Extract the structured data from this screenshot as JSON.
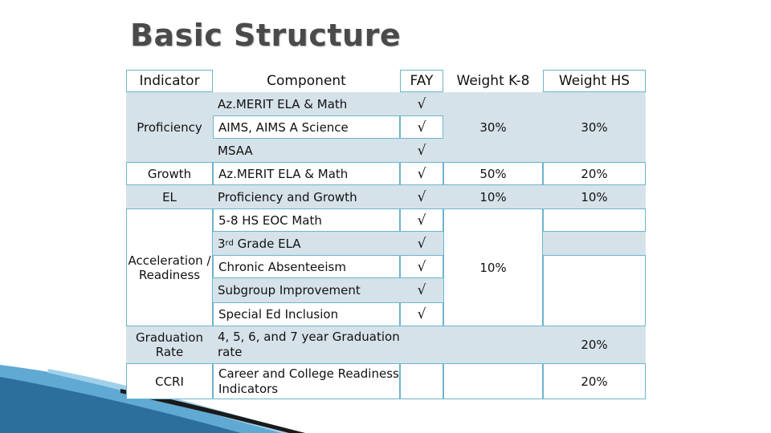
{
  "title": "Basic Structure",
  "headers": {
    "indicator": "Indicator",
    "component": "Component",
    "fay": "FAY",
    "weight_k8": "Weight K-8",
    "weight_hs": "Weight HS"
  },
  "check": "√",
  "rows": {
    "proficiency": {
      "indicator": "Proficiency",
      "components": [
        "Az.MERIT ELA & Math",
        "AIMS, AIMS A Science",
        "MSAA"
      ],
      "weight_k8": "30%",
      "weight_hs": "30%"
    },
    "growth": {
      "indicator": "Growth",
      "component": "Az.MERIT ELA & Math",
      "weight_k8": "50%",
      "weight_hs": "20%"
    },
    "el": {
      "indicator": "EL",
      "component": "Proficiency and Growth",
      "weight_k8": "10%",
      "weight_hs": "10%"
    },
    "acceleration": {
      "indicator": "Acceleration / Readiness",
      "component_1": "5-8 HS EOC Math",
      "component_2_sup": "rd",
      "component_2_prefix": "3",
      "component_2_suffix": " Grade ELA",
      "component_3": "Chronic Absenteeism",
      "component_4": "Subgroup Improvement",
      "component_5": "Special Ed Inclusion",
      "weight_k8": "10%"
    },
    "graduation": {
      "indicator": "Graduation Rate",
      "component": "4, 5, 6, and 7 year Graduation rate",
      "weight_hs": "20%"
    },
    "ccri": {
      "indicator": "CCRI",
      "component": "Career and College Readiness Indicators",
      "weight_hs": "20%"
    }
  }
}
